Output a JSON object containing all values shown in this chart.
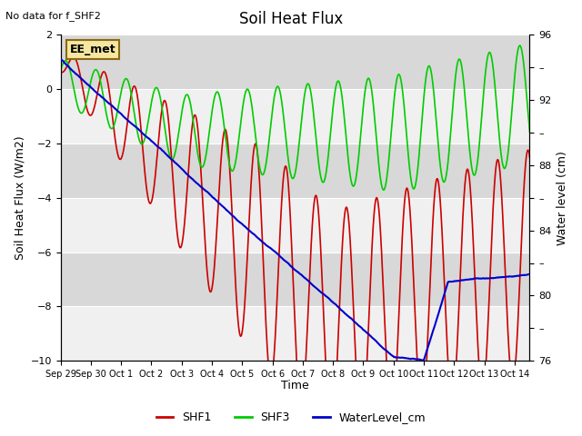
{
  "title": "Soil Heat Flux",
  "subtitle": "No data for f_SHF2",
  "xlabel": "Time",
  "ylabel_left": "Soil Heat Flux (W/m2)",
  "ylabel_right": "Water level (cm)",
  "ylim_left": [
    -10,
    2
  ],
  "ylim_right": [
    76,
    96
  ],
  "yticks_left": [
    -10,
    -8,
    -6,
    -4,
    -2,
    0,
    2
  ],
  "yticks_right": [
    76,
    78,
    80,
    82,
    84,
    86,
    88,
    90,
    92,
    94,
    96
  ],
  "annotation": "EE_met",
  "bg_color": "#e8e8e8",
  "bg_light": "#f0f0f0",
  "bg_dark": "#d8d8d8",
  "shf1_color": "#cc0000",
  "shf3_color": "#00cc00",
  "water_color": "#0000cc",
  "xtick_labels": [
    "Sep 29",
    "Sep 30",
    "Oct 1",
    "Oct 2",
    "Oct 3",
    "Oct 4",
    "Oct 5",
    "Oct 6",
    "Oct 7",
    "Oct 8",
    "Oct 9",
    "Oct 10",
    "Oct 11",
    "Oct 12",
    "Oct 13",
    "Oct 14"
  ],
  "legend_items": [
    "SHF1",
    "SHF3",
    "WaterLevel_cm"
  ]
}
